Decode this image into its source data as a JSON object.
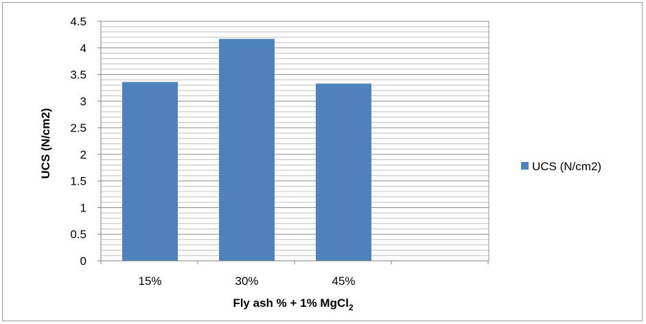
{
  "chart_data": {
    "type": "bar",
    "categories": [
      "15%",
      "30%",
      "45%"
    ],
    "series": [
      {
        "name": "UCS (N/cm2)",
        "values": [
          3.36,
          4.17,
          3.33
        ],
        "color": "#4f81bd"
      }
    ],
    "xlabel_main": "Fly ash % + 1% MgCl",
    "xlabel_subscript": "2",
    "ylabel": "UCS (N/cm2)",
    "ylim": [
      0,
      4.5
    ],
    "yticks": [
      "0",
      "0.5",
      "1",
      "1.5",
      "2",
      "2.5",
      "3",
      "3.5",
      "4",
      "4.5"
    ],
    "grid": true,
    "legend_position": "right"
  }
}
